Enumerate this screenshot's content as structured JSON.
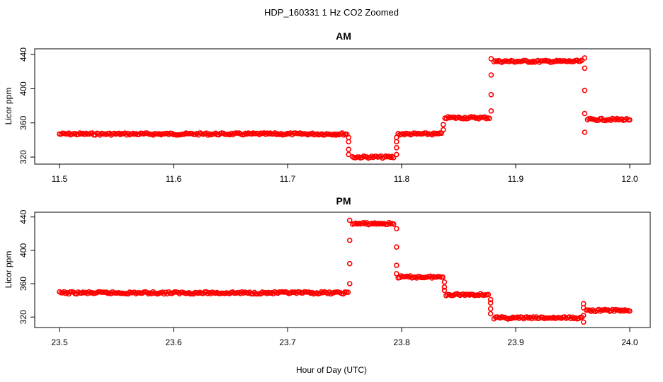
{
  "figure_title": "HDP_160331  1 Hz CO2 Zoomed",
  "x_axis_label": "Hour of Day (UTC)",
  "point_color": "#ff0000",
  "chart_data": [
    {
      "type": "scatter",
      "title": "AM",
      "xlabel": "",
      "ylabel": "Licor ppm",
      "xlim": [
        11.5,
        12.0
      ],
      "ylim": [
        313,
        445
      ],
      "x_ticks": [
        11.5,
        11.6,
        11.7,
        11.8,
        11.9,
        12.0
      ],
      "x_tick_labels": [
        "11.5",
        "11.6",
        "11.7",
        "11.8",
        "11.9",
        "12.0"
      ],
      "y_ticks": [
        320,
        360,
        400,
        440
      ],
      "y_tick_labels": [
        "320",
        "360",
        "400",
        "440"
      ],
      "series": [
        {
          "segments": [
            {
              "x": [
                11.5,
                11.752
              ],
              "y": 347
            },
            {
              "x": [
                11.757,
                11.793
              ],
              "y": 320
            },
            {
              "x": [
                11.797,
                11.835
              ],
              "y": 347
            },
            {
              "x": [
                11.838,
                11.877
              ],
              "y": 366
            },
            {
              "x": [
                11.881,
                11.958
              ],
              "y": 432
            },
            {
              "x": [
                11.963,
                12.0
              ],
              "y": 364
            }
          ],
          "transitions": [
            {
              "x": 11.7535,
              "y": [
                343,
                338,
                329,
                323
              ]
            },
            {
              "x": 11.7955,
              "y": [
                323,
                331,
                338,
                343
              ]
            },
            {
              "x": 11.8365,
              "y": [
                352,
                358
              ]
            },
            {
              "x": 11.8785,
              "y": [
                374,
                393,
                416,
                435
              ]
            },
            {
              "x": 11.9605,
              "y": [
                436,
                424,
                398,
                371,
                349
              ]
            }
          ]
        }
      ]
    },
    {
      "type": "scatter",
      "title": "PM",
      "xlabel": "Hour of Day (UTC)",
      "ylabel": "Licor ppm",
      "xlim": [
        23.5,
        24.0
      ],
      "ylim": [
        310,
        444
      ],
      "x_ticks": [
        23.5,
        23.6,
        23.7,
        23.8,
        23.9,
        24.0
      ],
      "x_tick_labels": [
        "23.5",
        "23.6",
        "23.7",
        "23.8",
        "23.9",
        "24.0"
      ],
      "y_ticks": [
        320,
        360,
        400,
        440
      ],
      "y_tick_labels": [
        "320",
        "360",
        "400",
        "440"
      ],
      "series": [
        {
          "segments": [
            {
              "x": [
                23.5,
                23.753
              ],
              "y": 349
            },
            {
              "x": [
                23.757,
                23.793
              ],
              "y": 432
            },
            {
              "x": [
                23.797,
                23.836
              ],
              "y": 368
            },
            {
              "x": [
                23.839,
                23.876
              ],
              "y": 347
            },
            {
              "x": [
                23.881,
                23.958
              ],
              "y": 319
            },
            {
              "x": [
                23.962,
                24.0
              ],
              "y": 328
            }
          ],
          "transitions": [
            {
              "x": 23.7545,
              "y": [
                360,
                384,
                412,
                436
              ]
            },
            {
              "x": 23.7955,
              "y": [
                426,
                404,
                382,
                372
              ]
            },
            {
              "x": 23.8375,
              "y": [
                362,
                356,
                352
              ]
            },
            {
              "x": 23.878,
              "y": [
                341,
                337,
                330,
                324
              ]
            },
            {
              "x": 23.9595,
              "y": [
                314,
                322,
                331,
                336
              ]
            }
          ]
        }
      ]
    }
  ]
}
